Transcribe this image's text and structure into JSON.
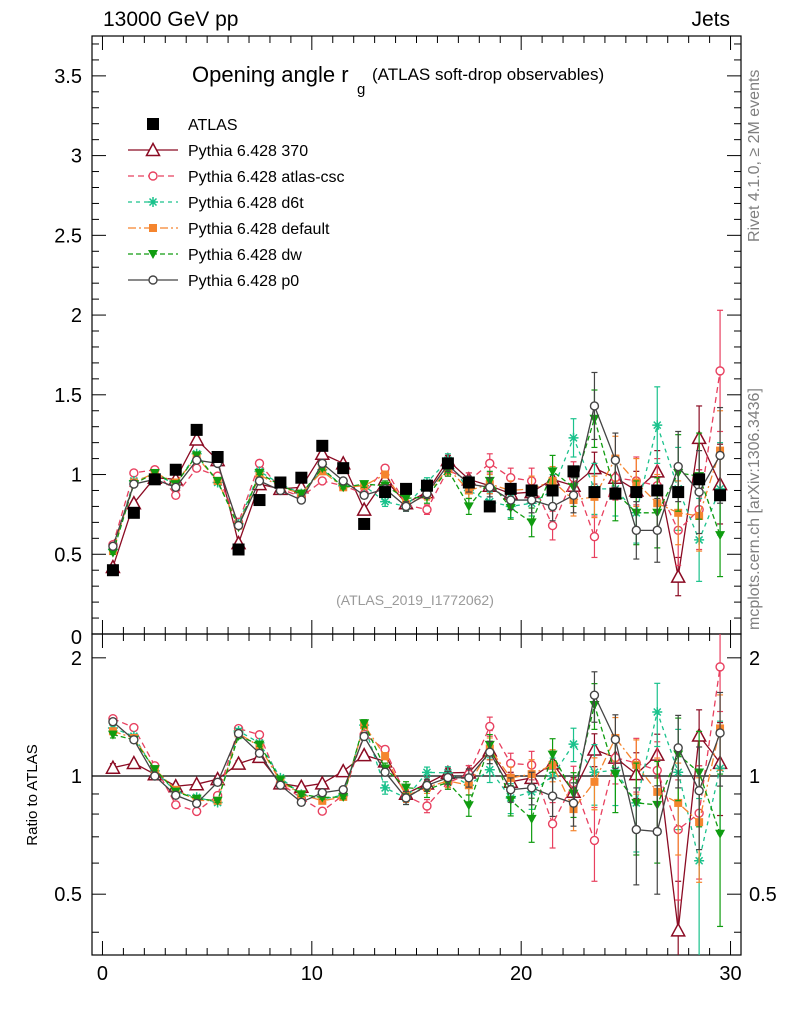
{
  "header": {
    "energy_label": "13000 GeV pp",
    "process_label": "Jets",
    "rivet_label": "Rivet 4.1.0, ≥ 2M events",
    "mcplots_label": "mcplots.cern.ch [arXiv:1306.3436]"
  },
  "chart_data": {
    "type": "line",
    "title": "Opening angle r",
    "title_subscript": "g",
    "subtitle": "(ATLAS soft-drop observables)",
    "analysis_id": "(ATLAS_2019_I1772062)",
    "xlabel": "",
    "ylabel_main": "",
    "ylabel_ratio": "Ratio to ATLAS",
    "xlim": [
      -0.5,
      30.5
    ],
    "ylim_main": [
      0,
      3.75
    ],
    "ylim_ratio": [
      0.35,
      2.3
    ],
    "x_ticks": [
      "0",
      "10",
      "20",
      "30"
    ],
    "y_ticks_main": [
      "0.5",
      "1",
      "1.5",
      "2",
      "2.5",
      "3",
      "3.5"
    ],
    "y_ticks_ratio": [
      "0.5",
      "1",
      "2"
    ],
    "x": [
      0.5,
      1.5,
      2.5,
      3.5,
      4.5,
      5.5,
      6.5,
      7.5,
      8.5,
      9.5,
      10.5,
      11.5,
      12.5,
      13.5,
      14.5,
      15.5,
      16.5,
      17.5,
      18.5,
      19.5,
      20.5,
      21.5,
      22.5,
      23.5,
      24.5,
      25.5,
      26.5,
      27.5,
      28.5,
      29.5
    ],
    "data": {
      "name": "ATLAS",
      "values": [
        0.4,
        0.76,
        0.97,
        1.03,
        1.28,
        1.11,
        0.53,
        0.84,
        0.95,
        0.98,
        1.18,
        1.04,
        0.69,
        0.89,
        0.91,
        0.93,
        1.07,
        0.95,
        0.8,
        0.91,
        0.9,
        0.9,
        1.02,
        0.89,
        0.88,
        0.89,
        0.9,
        0.89,
        0.97,
        0.87
      ]
    },
    "series": [
      {
        "name": "Pythia 6.428 370",
        "color": "#8b0b23",
        "dash": "solid",
        "marker": "triangle-open",
        "values": [
          0.42,
          0.82,
          0.98,
          0.97,
          1.22,
          1.09,
          0.57,
          0.94,
          0.91,
          0.92,
          1.13,
          1.07,
          0.78,
          0.97,
          0.82,
          0.89,
          1.09,
          0.97,
          0.93,
          0.88,
          0.89,
          0.97,
          0.93,
          1.04,
          0.98,
          0.9,
          1.02,
          0.36,
          1.23,
          0.94
        ],
        "errors": [
          0.01,
          0.01,
          0.01,
          0.01,
          0.01,
          0.01,
          0.01,
          0.01,
          0.01,
          0.01,
          0.01,
          0.01,
          0.01,
          0.02,
          0.02,
          0.03,
          0.03,
          0.04,
          0.05,
          0.05,
          0.06,
          0.07,
          0.08,
          0.1,
          0.1,
          0.12,
          0.13,
          0.12,
          0.2,
          0.25
        ]
      },
      {
        "name": "Pythia 6.428 atlas-csc",
        "color": "#e8405f",
        "dash": "6,4",
        "marker": "circle-open",
        "values": [
          0.56,
          1.01,
          1.03,
          0.87,
          1.04,
          0.99,
          0.7,
          1.07,
          0.91,
          0.86,
          0.96,
          0.93,
          0.88,
          1.04,
          0.81,
          0.78,
          1.03,
          0.96,
          1.07,
          0.98,
          0.96,
          0.68,
          0.98,
          0.61,
          0.98,
          0.96,
          0.93,
          0.65,
          0.78,
          1.65
        ],
        "errors": [
          0.01,
          0.01,
          0.01,
          0.01,
          0.01,
          0.01,
          0.01,
          0.01,
          0.01,
          0.01,
          0.01,
          0.01,
          0.02,
          0.02,
          0.03,
          0.03,
          0.04,
          0.05,
          0.06,
          0.06,
          0.08,
          0.09,
          0.1,
          0.13,
          0.14,
          0.15,
          0.17,
          0.22,
          0.25,
          0.38
        ]
      },
      {
        "name": "Pythia 6.428 d6t",
        "color": "#1ac28c",
        "dash": "4,4",
        "marker": "star",
        "values": [
          0.53,
          0.96,
          1.0,
          0.94,
          1.13,
          0.95,
          0.69,
          1.02,
          0.94,
          0.88,
          1.03,
          0.93,
          0.93,
          0.83,
          0.8,
          0.95,
          1.09,
          0.9,
          0.83,
          0.8,
          0.82,
          0.9,
          1.23,
          0.91,
          0.91,
          0.76,
          1.31,
          0.91,
          0.59,
          0.91
        ],
        "errors": [
          0.01,
          0.01,
          0.01,
          0.01,
          0.01,
          0.01,
          0.01,
          0.01,
          0.01,
          0.01,
          0.01,
          0.01,
          0.02,
          0.03,
          0.03,
          0.03,
          0.04,
          0.05,
          0.06,
          0.07,
          0.08,
          0.1,
          0.12,
          0.16,
          0.17,
          0.19,
          0.24,
          0.26,
          0.26,
          0.29
        ]
      },
      {
        "name": "Pythia 6.428 default",
        "color": "#f5852e",
        "dash": "8,3,2,3",
        "marker": "square",
        "values": [
          0.52,
          0.95,
          1.01,
          0.95,
          1.11,
          0.96,
          0.68,
          1.0,
          0.92,
          0.88,
          1.02,
          0.92,
          0.93,
          1.0,
          0.81,
          0.87,
          1.04,
          0.9,
          0.94,
          0.9,
          0.91,
          0.96,
          0.84,
          0.86,
          1.1,
          0.95,
          0.82,
          0.76,
          0.74,
          1.15
        ],
        "errors": [
          0.01,
          0.01,
          0.01,
          0.01,
          0.01,
          0.01,
          0.01,
          0.01,
          0.01,
          0.01,
          0.01,
          0.01,
          0.02,
          0.02,
          0.03,
          0.03,
          0.04,
          0.05,
          0.06,
          0.06,
          0.08,
          0.09,
          0.1,
          0.13,
          0.14,
          0.15,
          0.18,
          0.2,
          0.22,
          0.25
        ]
      },
      {
        "name": "Pythia 6.428 dw",
        "color": "#109c10",
        "dash": "5,3",
        "marker": "triangle-down",
        "values": [
          0.51,
          0.94,
          1.01,
          0.94,
          1.12,
          0.96,
          0.67,
          1.01,
          0.93,
          0.88,
          1.04,
          0.92,
          0.94,
          0.93,
          0.85,
          0.86,
          1.03,
          0.8,
          0.96,
          0.79,
          0.7,
          1.02,
          0.92,
          1.35,
          0.89,
          0.76,
          0.76,
          1.01,
          0.99,
          0.62
        ],
        "errors": [
          0.01,
          0.01,
          0.01,
          0.01,
          0.01,
          0.01,
          0.01,
          0.01,
          0.01,
          0.01,
          0.01,
          0.01,
          0.02,
          0.03,
          0.03,
          0.04,
          0.04,
          0.05,
          0.06,
          0.07,
          0.09,
          0.1,
          0.12,
          0.18,
          0.18,
          0.2,
          0.22,
          0.24,
          0.27,
          0.26
        ]
      },
      {
        "name": "Pythia 6.428 p0",
        "color": "#444444",
        "dash": "solid",
        "marker": "circle-open",
        "values": [
          0.55,
          0.94,
          0.97,
          0.92,
          1.09,
          1.07,
          0.68,
          0.96,
          0.9,
          0.84,
          1.07,
          0.96,
          0.87,
          0.91,
          0.8,
          0.88,
          1.06,
          0.94,
          0.92,
          0.84,
          0.84,
          0.8,
          0.87,
          1.43,
          1.09,
          0.65,
          0.65,
          1.05,
          0.89,
          1.12
        ],
        "errors": [
          0.01,
          0.01,
          0.01,
          0.01,
          0.01,
          0.01,
          0.01,
          0.01,
          0.01,
          0.01,
          0.01,
          0.01,
          0.02,
          0.02,
          0.03,
          0.03,
          0.04,
          0.05,
          0.06,
          0.06,
          0.08,
          0.09,
          0.11,
          0.21,
          0.17,
          0.18,
          0.2,
          0.22,
          0.26,
          0.3
        ]
      }
    ]
  }
}
